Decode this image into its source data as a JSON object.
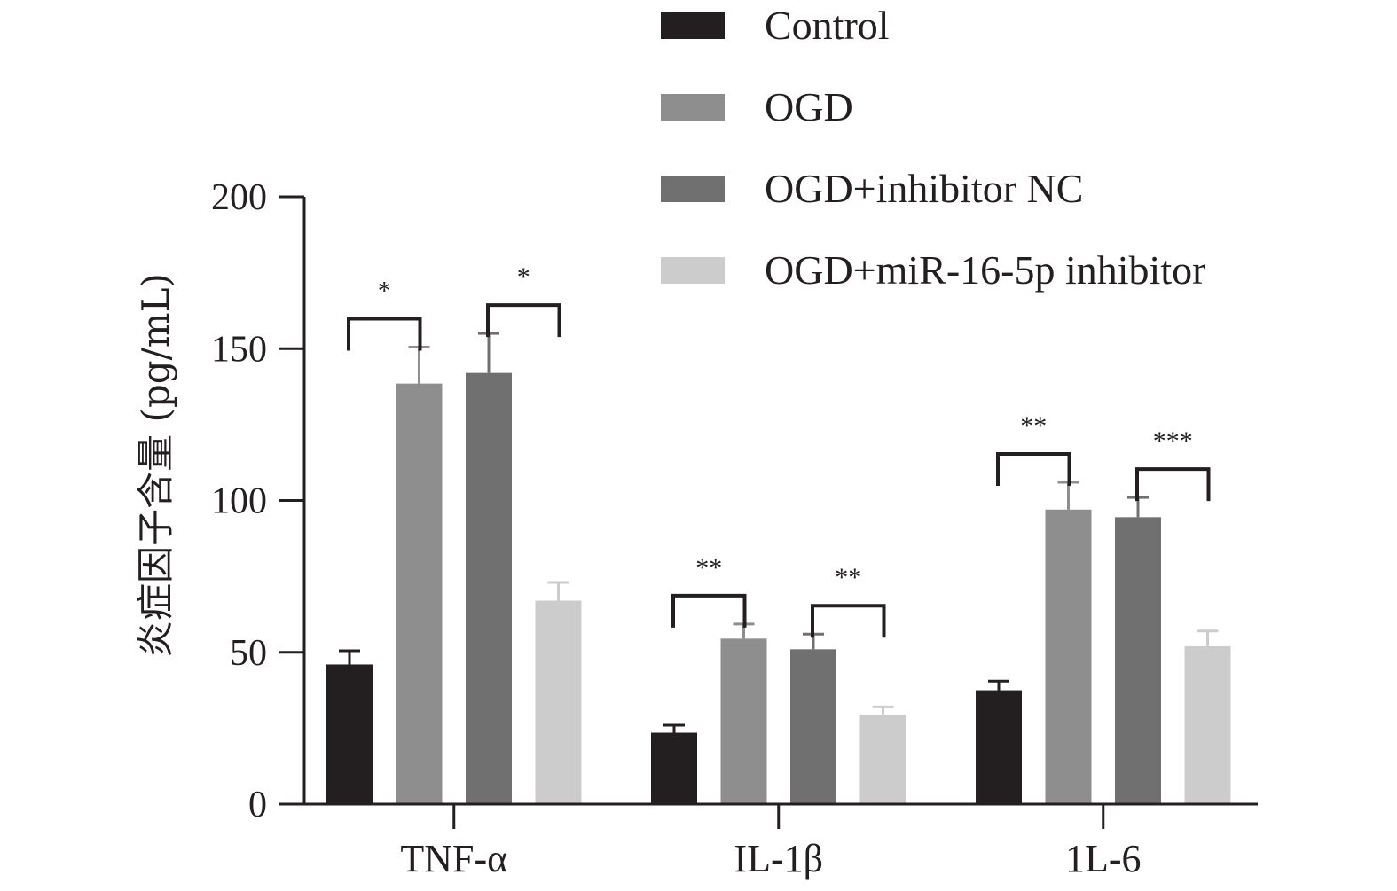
{
  "chart_data": {
    "type": "bar",
    "categories": [
      "TNF-α",
      "IL-1β",
      "1L-6"
    ],
    "ylabel": "炎症因子含量 (pg/mL)",
    "xlabel": "",
    "ylim": [
      0,
      200
    ],
    "yticks": [
      0,
      50,
      100,
      150,
      200
    ],
    "grid": false,
    "legend_position": "top-right",
    "series": [
      {
        "name": "Control",
        "color": "#231f20",
        "values": [
          46,
          23.5,
          37.5
        ],
        "errors": [
          4.5,
          2.5,
          3
        ]
      },
      {
        "name": "OGD",
        "color": "#8e8e8e",
        "values": [
          138.5,
          54.5,
          97
        ],
        "errors": [
          12,
          4.8,
          9
        ]
      },
      {
        "name": "OGD+inhibitor NC",
        "color": "#707070",
        "values": [
          142,
          51,
          94.5
        ],
        "errors": [
          13,
          5,
          6.5
        ]
      },
      {
        "name": "OGD+miR-16-5p inhibitor",
        "color": "#cccccc",
        "values": [
          67,
          29.5,
          52
        ],
        "errors": [
          6,
          2.5,
          5
        ]
      }
    ],
    "significance": [
      {
        "category": 0,
        "from_series": 0,
        "to_series": 1,
        "label": "*"
      },
      {
        "category": 0,
        "from_series": 2,
        "to_series": 3,
        "label": "*"
      },
      {
        "category": 1,
        "from_series": 0,
        "to_series": 1,
        "label": "**"
      },
      {
        "category": 1,
        "from_series": 2,
        "to_series": 3,
        "label": "**"
      },
      {
        "category": 2,
        "from_series": 0,
        "to_series": 1,
        "label": "**"
      },
      {
        "category": 2,
        "from_series": 2,
        "to_series": 3,
        "label": "***"
      }
    ]
  }
}
